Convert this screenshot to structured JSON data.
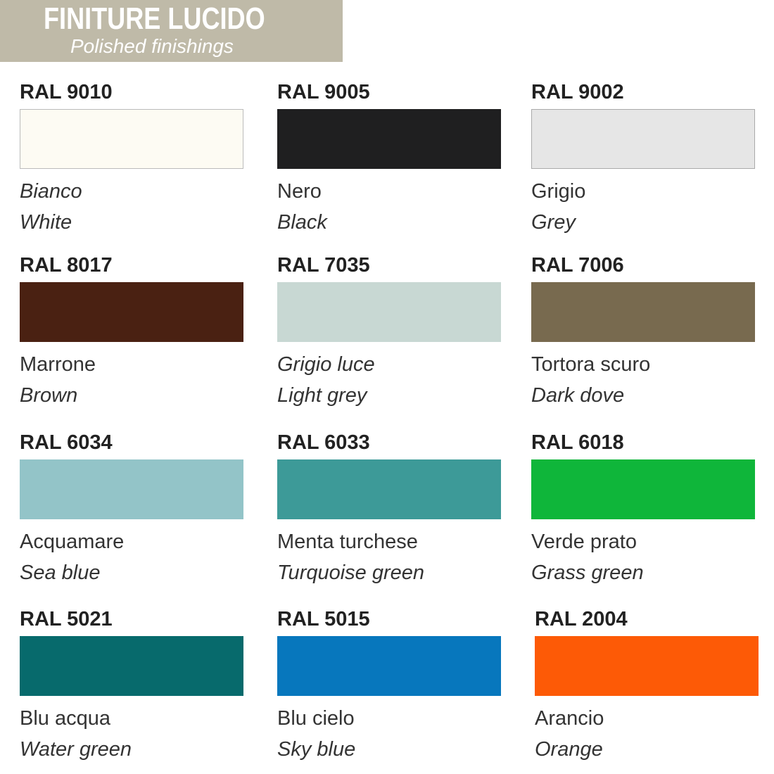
{
  "header": {
    "title": "FINITURE LUCIDO",
    "subtitle": "Polished finishings",
    "color": "#bfbaa8"
  },
  "swatches": [
    {
      "code": "RAL 9010",
      "it": "Bianco",
      "en": "White",
      "color": "#fdfbf3",
      "border": "#bbbbbb",
      "it_italic": true
    },
    {
      "code": "RAL 9005",
      "it": "Nero",
      "en": "Black",
      "color": "#1f1f20",
      "border": "#1f1f20",
      "it_italic": false
    },
    {
      "code": "RAL 9002",
      "it": "Grigio",
      "en": "Grey",
      "color": "#e6e6e6",
      "border": "#aaaaaa",
      "it_italic": false
    },
    {
      "code": "RAL 8017",
      "it": "Marrone",
      "en": "Brown",
      "color": "#4a2112",
      "border": "#4a2112",
      "it_italic": false
    },
    {
      "code": "RAL 7035",
      "it": "Grigio luce",
      "en": "Light grey",
      "color": "#c8d8d3",
      "border": "#c8d8d3",
      "it_italic": true
    },
    {
      "code": "RAL 7006",
      "it": "Tortora scuro",
      "en": "Dark dove",
      "color": "#786a4f",
      "border": "#786a4f",
      "it_italic": false
    },
    {
      "code": "RAL 6034",
      "it": "Acquamare",
      "en": "Sea blue",
      "color": "#93c4c8",
      "border": "#93c4c8",
      "it_italic": false
    },
    {
      "code": "RAL 6033",
      "it": "Menta turchese",
      "en": "Turquoise green",
      "color": "#3d9a98",
      "border": "#3d9a98",
      "it_italic": false
    },
    {
      "code": "RAL 6018",
      "it": "Verde prato",
      "en": "Grass green",
      "color": "#0fb63a",
      "border": "#0fb63a",
      "it_italic": false
    },
    {
      "code": "RAL 5021",
      "it": "Blu acqua",
      "en": "Water green",
      "color": "#076a6c",
      "border": "#076a6c",
      "it_italic": false
    },
    {
      "code": "RAL 5015",
      "it": "Blu cielo",
      "en": "Sky blue",
      "color": "#0777bd",
      "border": "#0777bd",
      "it_italic": false
    },
    {
      "code": "RAL 2004",
      "it": "Arancio",
      "en": "Orange",
      "color": "#fd5a06",
      "border": "#fd5a06",
      "it_italic": false
    }
  ]
}
